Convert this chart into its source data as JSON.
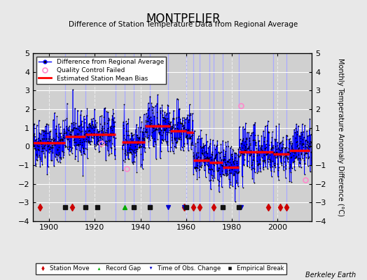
{
  "title": "MONTPELIER",
  "subtitle": "Difference of Station Temperature Data from Regional Average",
  "ylabel": "Monthly Temperature Anomaly Difference (°C)",
  "xlabel_credit": "Berkeley Earth",
  "ylim": [
    -4,
    5
  ],
  "yticks": [
    -4,
    -3,
    -2,
    -1,
    0,
    1,
    2,
    3,
    4,
    5
  ],
  "xlim": [
    1893,
    2015
  ],
  "xticks": [
    1900,
    1920,
    1940,
    1960,
    1980,
    2000
  ],
  "bg_color": "#e8e8e8",
  "plot_bg_color": "#d0d0d0",
  "grid_color": "#ffffff",
  "line_color": "#0000ff",
  "dot_color": "#000000",
  "bias_color": "#ff0000",
  "vertical_line_color": "#aaaaff",
  "segments": [
    {
      "start": 1893,
      "end": 1907,
      "bias": 0.2
    },
    {
      "start": 1907,
      "end": 1916,
      "bias": 0.55
    },
    {
      "start": 1916,
      "end": 1929,
      "bias": 0.65
    },
    {
      "start": 1932,
      "end": 1942,
      "bias": 0.25
    },
    {
      "start": 1942,
      "end": 1953,
      "bias": 1.1
    },
    {
      "start": 1953,
      "end": 1960,
      "bias": 0.85
    },
    {
      "start": 1960,
      "end": 1963,
      "bias": 0.75
    },
    {
      "start": 1963,
      "end": 1970,
      "bias": -0.75
    },
    {
      "start": 1970,
      "end": 1976,
      "bias": -0.85
    },
    {
      "start": 1976,
      "end": 1983,
      "bias": -1.1
    },
    {
      "start": 1983,
      "end": 1998,
      "bias": -0.3
    },
    {
      "start": 1998,
      "end": 2005,
      "bias": -0.4
    },
    {
      "start": 2005,
      "end": 2014,
      "bias": -0.2
    }
  ],
  "station_moves": [
    1896,
    1910,
    1959,
    1963,
    1966,
    1972,
    1996,
    2001,
    2004
  ],
  "record_gaps": [
    1933
  ],
  "obs_changes": [
    1944,
    1952,
    1959,
    1984
  ],
  "empirical_breaks": [
    1907,
    1916,
    1921,
    1937,
    1944,
    1960,
    1976,
    1983
  ],
  "vertical_lines": [
    1907,
    1916,
    1929,
    1933,
    1937,
    1944,
    1952,
    1960,
    1963,
    1966,
    1970,
    1972,
    1976,
    1983,
    1998,
    2004
  ],
  "qc_points": [
    [
      1923,
      0.15
    ],
    [
      1934,
      -1.2
    ],
    [
      1984,
      2.2
    ],
    [
      2012,
      -1.8
    ]
  ],
  "seed": 42
}
